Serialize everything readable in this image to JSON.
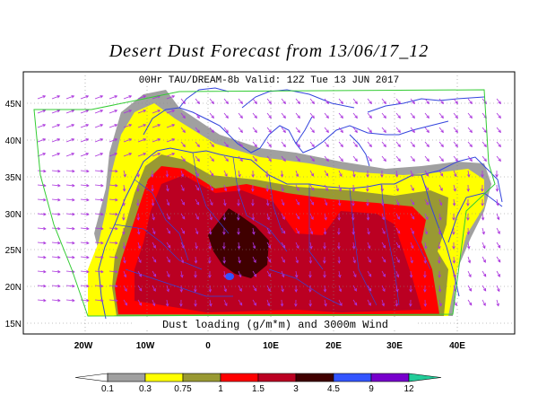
{
  "title": "Desert Dust Forecast from 13/06/17_12",
  "subtitle": "00Hr TAU/DREAM-8b Valid: 12Z Tue 13 JUN 2017",
  "bottom_label": "Dust loading (g/m*m) and 3000m Wind",
  "lat_labels": [
    "45N",
    "40N",
    "35N",
    "30N",
    "25N",
    "20N",
    "15N"
  ],
  "lon_labels": [
    "20W",
    "10W",
    "0",
    "10E",
    "20E",
    "30E",
    "40E"
  ],
  "colorbar": {
    "ticks": [
      "0.1",
      "0.3",
      "0.75",
      "1",
      "1.5",
      "3",
      "4.5",
      "9",
      "12"
    ],
    "colors": [
      "#ffffff",
      "#a0a0a0",
      "#ffff00",
      "#999933",
      "#ff0000",
      "#bb0022",
      "#400000",
      "#3355ff",
      "#7700cc",
      "#22cc99"
    ]
  },
  "colors": {
    "coast": "#3344dd",
    "vector": "#aa33dd",
    "domain": "#33cc33"
  }
}
